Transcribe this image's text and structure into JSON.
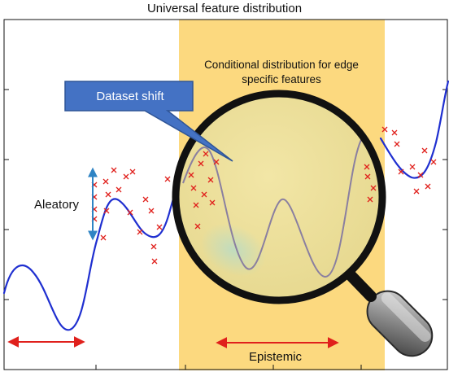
{
  "title": "Universal feature distribution",
  "callout": {
    "label": "Dataset shift"
  },
  "magnifier": {
    "label_line1": "Conditional distribution for edge",
    "label_line2": "specific features"
  },
  "annotations": {
    "aleatory": "Aleatory",
    "epistemic": "Epistemic"
  },
  "colors": {
    "highlight_band": "#fcd97f",
    "curve": "#1f2fd0",
    "lens_curve": "#8a7fa0",
    "markers": "#e0201c",
    "arrows": "#e0201c",
    "aleatory_arrow": "#2f84c4",
    "callout_fill": "#4472c4",
    "lens_rim": "#111111"
  },
  "icons": {
    "magnifier": "magnifying-glass-icon",
    "marker": "cross-marker-icon"
  }
}
